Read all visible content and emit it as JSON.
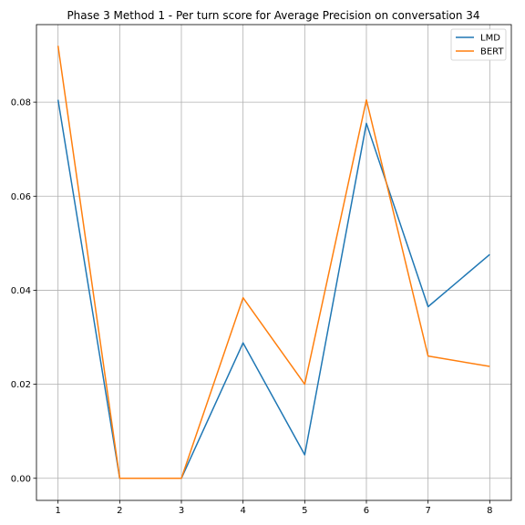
{
  "chart_data": {
    "type": "line",
    "title": "Phase 3 Method 1 - Per turn score for Average Precision on conversation 34",
    "xlabel": "",
    "ylabel": "",
    "x": [
      1,
      2,
      3,
      4,
      5,
      6,
      7,
      8
    ],
    "xlim": [
      0.65,
      8.35
    ],
    "ylim": [
      -0.0047,
      0.0965
    ],
    "xticks": [
      "1",
      "2",
      "3",
      "4",
      "5",
      "6",
      "7",
      "8"
    ],
    "yticks": [
      "0.00",
      "0.02",
      "0.04",
      "0.06",
      "0.08"
    ],
    "ytick_values": [
      0.0,
      0.02,
      0.04,
      0.06,
      0.08
    ],
    "grid": true,
    "legend_position": "top-right",
    "series": [
      {
        "name": "LMD",
        "color": "#1f77b4",
        "values": [
          0.0805,
          0.0,
          0.0,
          0.0288,
          0.005,
          0.0755,
          0.0365,
          0.0476
        ]
      },
      {
        "name": "BERT",
        "color": "#ff7f0e",
        "values": [
          0.092,
          0.0,
          0.0,
          0.0384,
          0.02,
          0.0805,
          0.026,
          0.0238
        ]
      }
    ]
  }
}
